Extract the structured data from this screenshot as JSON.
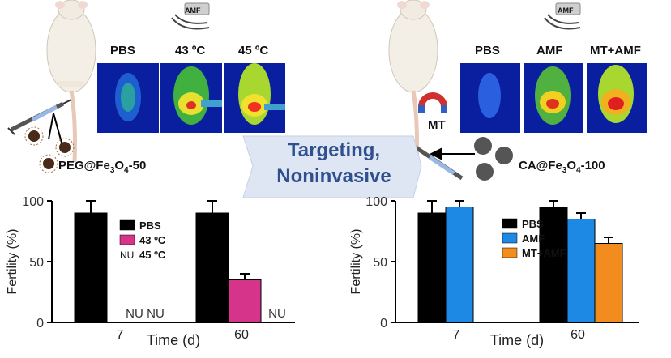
{
  "left": {
    "amf_tag": "AMF",
    "image_labels": [
      "PBS",
      "43 ºC",
      "45 ºC"
    ],
    "particle_label_main": "PEG@Fe",
    "particle_sub1": "3",
    "particle_mid": "O",
    "particle_sub2": "4",
    "particle_tail": "-50"
  },
  "right": {
    "amf_tag": "AMF",
    "image_labels": [
      "PBS",
      "AMF",
      "MT+AMF"
    ],
    "magnet_label": "MT",
    "particle_label_main": "CA@Fe",
    "particle_sub1": "3",
    "particle_mid": "O",
    "particle_sub2": "4",
    "particle_tail": "-100"
  },
  "center": {
    "line1": "Targeting,",
    "line2": "Noninvasive"
  },
  "chart_data": [
    {
      "type": "bar",
      "categories": [
        "7",
        "60"
      ],
      "series": [
        {
          "name": "PBS",
          "values": [
            90,
            90
          ],
          "errors": [
            10,
            10
          ],
          "color": "#000000"
        },
        {
          "name": "43 ºC",
          "values": [
            0,
            35
          ],
          "errors": [
            0,
            5
          ],
          "color": "#d6338a"
        },
        {
          "name": "45 ºC",
          "values": [
            null,
            null
          ],
          "errors": [
            0,
            0
          ],
          "color": "#ffffff"
        }
      ],
      "nu_marker": "NU",
      "nu_legend_prefix": "NU",
      "xlabel": "Time (d)",
      "ylabel": "Fertility (%)",
      "ylim": [
        0,
        100
      ],
      "yticks": [
        "0",
        "50",
        "100"
      ],
      "legend": "top-center"
    },
    {
      "type": "bar",
      "categories": [
        "7",
        "60"
      ],
      "series": [
        {
          "name": "PBS",
          "values": [
            90,
            95
          ],
          "errors": [
            10,
            5
          ],
          "color": "#000000"
        },
        {
          "name": "AMF",
          "values": [
            95,
            85
          ],
          "errors": [
            5,
            5
          ],
          "color": "#1e88e5"
        },
        {
          "name": "MT+AMF",
          "values": [
            null,
            65
          ],
          "errors": [
            0,
            5
          ],
          "color": "#f28c1e"
        }
      ],
      "xlabel": "Time (d)",
      "ylabel": "Fertility (%)",
      "ylim": [
        0,
        100
      ],
      "yticks": [
        "0",
        "50",
        "100"
      ],
      "legend": "top-center"
    }
  ]
}
